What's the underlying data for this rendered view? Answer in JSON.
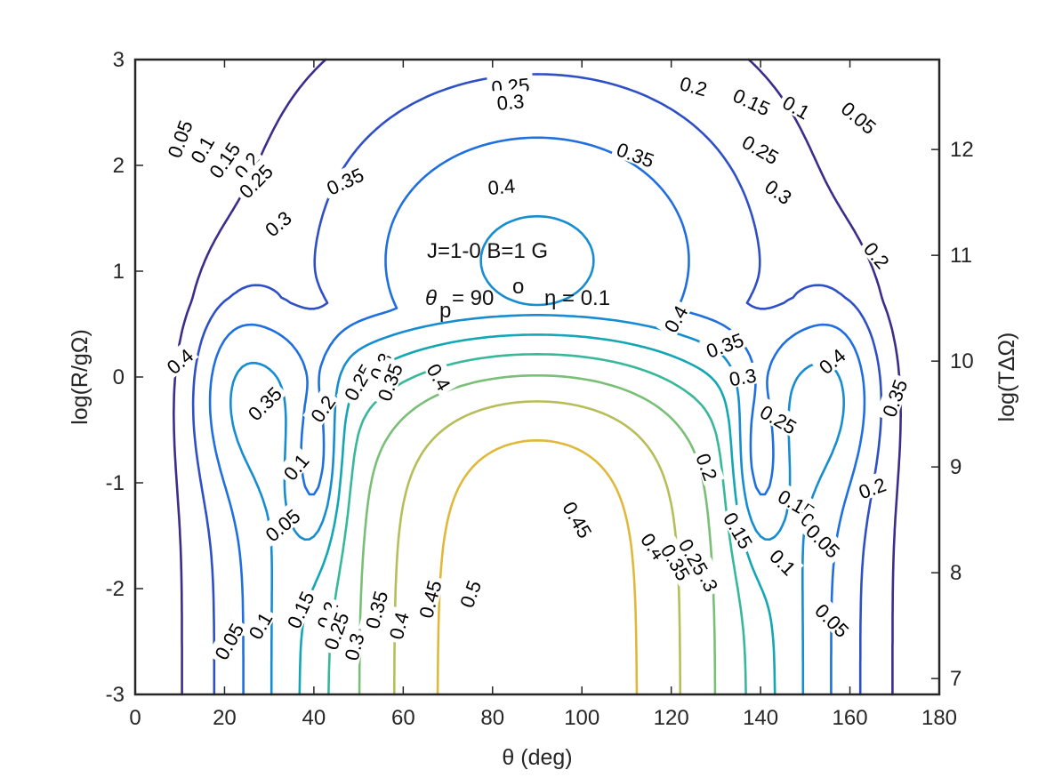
{
  "chart_data": {
    "type": "contour",
    "xlabel": "θ (deg)",
    "ylabel": "log(R/gΩ)",
    "y2label": "log(TΔΩ)",
    "xlim": [
      0,
      180
    ],
    "ylim": [
      -3,
      3
    ],
    "y2lim": [
      6.85,
      12.85
    ],
    "x_ticks": [
      "0",
      "20",
      "40",
      "60",
      "80",
      "100",
      "120",
      "140",
      "160",
      "180"
    ],
    "y_ticks": [
      "-3",
      "-2",
      "-1",
      "0",
      "1",
      "2",
      "3"
    ],
    "y2_ticks": [
      "7",
      "8",
      "9",
      "10",
      "11",
      "12"
    ],
    "annotation_line1": "J=1-0  B=1 G",
    "annotation_theta_sym": "θ",
    "annotation_theta_sub": "p",
    "annotation_theta_eq": " = 90",
    "annotation_theta_sup": "o",
    "annotation_eta": "η = 0.1",
    "levels": [
      0.05,
      0.1,
      0.15,
      0.2,
      0.25,
      0.3,
      0.35,
      0.4,
      0.45,
      0.5
    ],
    "level_colors": [
      "#3e2c8a",
      "#2f4fc7",
      "#1f6fe0",
      "#168dd1",
      "#13a6b5",
      "#37b89a",
      "#79bf76",
      "#b7be59",
      "#e0b93c",
      "#fae623"
    ],
    "labels": [
      {
        "text": "0.05",
        "x": 10,
        "y": 2.25,
        "rot": -70
      },
      {
        "text": "0.1",
        "x": 15,
        "y": 2.15,
        "rot": -60
      },
      {
        "text": "0.15",
        "x": 20,
        "y": 2.05,
        "rot": -55
      },
      {
        "text": "0.2",
        "x": 25,
        "y": 2.0,
        "rot": -50
      },
      {
        "text": "0.25",
        "x": 27,
        "y": 1.85,
        "rot": -45
      },
      {
        "text": "0.3",
        "x": 32,
        "y": 1.45,
        "rot": -40
      },
      {
        "text": "0.35",
        "x": 47,
        "y": 1.85,
        "rot": -25
      },
      {
        "text": "0.4",
        "x": 82,
        "y": 1.8,
        "rot": -5
      },
      {
        "text": "0.25",
        "x": 84,
        "y": 2.75,
        "rot": -5
      },
      {
        "text": "0.3",
        "x": 84,
        "y": 2.6,
        "rot": -5
      },
      {
        "text": "0.35",
        "x": 112,
        "y": 2.1,
        "rot": 20
      },
      {
        "text": "0.2",
        "x": 125,
        "y": 2.75,
        "rot": 15
      },
      {
        "text": "0.15",
        "x": 138,
        "y": 2.6,
        "rot": 25
      },
      {
        "text": "0.1",
        "x": 148,
        "y": 2.55,
        "rot": 30
      },
      {
        "text": "0.05",
        "x": 162,
        "y": 2.45,
        "rot": 40
      },
      {
        "text": "0.25",
        "x": 140,
        "y": 2.15,
        "rot": 30
      },
      {
        "text": "0.3",
        "x": 144,
        "y": 1.75,
        "rot": 35
      },
      {
        "text": "0.2",
        "x": 166,
        "y": 1.15,
        "rot": 50
      },
      {
        "text": "0.4",
        "x": 121,
        "y": 0.55,
        "rot": -60
      },
      {
        "text": "0.35",
        "x": 132,
        "y": 0.3,
        "rot": -20
      },
      {
        "text": "0.3",
        "x": 136,
        "y": 0.0,
        "rot": -10
      },
      {
        "text": "0.25",
        "x": 144,
        "y": -0.4,
        "rot": 30
      },
      {
        "text": "0.2",
        "x": 128,
        "y": -0.85,
        "rot": 70
      },
      {
        "text": "0.15",
        "x": 148,
        "y": -1.2,
        "rot": 30
      },
      {
        "text": "0.1",
        "x": 152,
        "y": -1.4,
        "rot": 40
      },
      {
        "text": "0.05",
        "x": 154,
        "y": -1.55,
        "rot": 45
      },
      {
        "text": "0.2",
        "x": 165,
        "y": -1.05,
        "rot": -20
      },
      {
        "text": "0.4",
        "x": 156,
        "y": 0.15,
        "rot": -40
      },
      {
        "text": "0.35",
        "x": 170,
        "y": -0.2,
        "rot": -70
      },
      {
        "text": "0.4",
        "x": 10,
        "y": 0.15,
        "rot": -40
      },
      {
        "text": "0.35",
        "x": 29,
        "y": -0.25,
        "rot": -45
      },
      {
        "text": "0.2",
        "x": 42,
        "y": -0.3,
        "rot": -55
      },
      {
        "text": "0.25",
        "x": 50,
        "y": -0.05,
        "rot": -60
      },
      {
        "text": "0.3",
        "x": 55,
        "y": 0.1,
        "rot": -65
      },
      {
        "text": "0.35",
        "x": 57,
        "y": -0.05,
        "rot": -70
      },
      {
        "text": "0.4",
        "x": 68,
        "y": 0.0,
        "rot": 60
      },
      {
        "text": "0.1",
        "x": 36,
        "y": -0.85,
        "rot": -50
      },
      {
        "text": "0.05",
        "x": 33,
        "y": -1.4,
        "rot": -40
      },
      {
        "text": "0.45",
        "x": 99,
        "y": -1.35,
        "rot": 60
      },
      {
        "text": "0.4",
        "x": 116,
        "y": -1.6,
        "rot": 55
      },
      {
        "text": "0.35",
        "x": 121,
        "y": -1.75,
        "rot": 60
      },
      {
        "text": "0.3",
        "x": 128,
        "y": -1.9,
        "rot": 65
      },
      {
        "text": "0.25",
        "x": 125,
        "y": -1.7,
        "rot": 60
      },
      {
        "text": "0.15",
        "x": 135,
        "y": -1.45,
        "rot": 60
      },
      {
        "text": "0.1",
        "x": 145,
        "y": -1.75,
        "rot": 45
      },
      {
        "text": "0.05",
        "x": 156,
        "y": -2.3,
        "rot": 45
      },
      {
        "text": "0.05",
        "x": 21,
        "y": -2.5,
        "rot": -60
      },
      {
        "text": "0.1",
        "x": 28,
        "y": -2.35,
        "rot": -60
      },
      {
        "text": "0.15",
        "x": 37,
        "y": -2.2,
        "rot": -65
      },
      {
        "text": "0.2",
        "x": 43,
        "y": -2.25,
        "rot": -70
      },
      {
        "text": "0.25",
        "x": 45,
        "y": -2.4,
        "rot": -70
      },
      {
        "text": "0.3",
        "x": 49,
        "y": -2.55,
        "rot": -75
      },
      {
        "text": "0.35",
        "x": 54,
        "y": -2.2,
        "rot": -75
      },
      {
        "text": "0.4",
        "x": 59,
        "y": -2.35,
        "rot": -75
      },
      {
        "text": "0.45",
        "x": 66,
        "y": -2.1,
        "rot": -75
      },
      {
        "text": "0.5",
        "x": 75,
        "y": -2.05,
        "rot": -70
      }
    ]
  }
}
